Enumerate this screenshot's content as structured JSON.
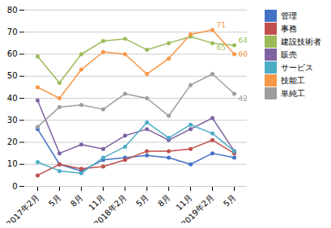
{
  "chart_data": {
    "type": "line",
    "categories": [
      "2017年2月",
      "5月",
      "8月",
      "11月",
      "2018年2月",
      "5月",
      "8月",
      "11月",
      "2019年2月",
      "5月"
    ],
    "series": [
      {
        "name": "管理",
        "color": "#4472C4",
        "marker": "o",
        "values": [
          26,
          10,
          7,
          12,
          13,
          14,
          13,
          10,
          15,
          13
        ]
      },
      {
        "name": "事務",
        "color": "#C0504D",
        "marker": "o",
        "values": [
          5,
          10,
          8,
          9,
          12,
          16,
          16,
          17,
          21,
          15
        ]
      },
      {
        "name": "建設技術者",
        "color": "#9BBB59",
        "marker": "o",
        "values": [
          59,
          47,
          60,
          66,
          67,
          62,
          65,
          68,
          65,
          64
        ]
      },
      {
        "name": "販売",
        "color": "#8064A2",
        "marker": "o",
        "values": [
          39,
          15,
          19,
          17,
          23,
          26,
          21,
          26,
          31,
          16
        ]
      },
      {
        "name": "サービス",
        "color": "#4BACC6",
        "marker": "o",
        "values": [
          11,
          7,
          6,
          13,
          18,
          29,
          22,
          28,
          24,
          16
        ]
      },
      {
        "name": "技能工",
        "color": "#F79646",
        "marker": "o",
        "values": [
          45,
          40,
          53,
          61,
          60,
          51,
          58,
          69,
          71,
          60
        ]
      },
      {
        "name": "単純工",
        "color": "#9E9E9E",
        "marker": "o",
        "values": [
          27,
          36,
          37,
          35,
          42,
          40,
          32,
          46,
          51,
          42
        ]
      }
    ],
    "annotations": [
      {
        "text": "71",
        "series": "技能工",
        "index": 8
      },
      {
        "text": "65",
        "series": "建設技術者",
        "index": 8
      },
      {
        "text": "64",
        "series": "建設技術者",
        "index": 9
      },
      {
        "text": "60",
        "series": "技能工",
        "index": 9
      },
      {
        "text": "42",
        "series": "単純工",
        "index": 9
      }
    ],
    "ylim": [
      0,
      80
    ],
    "yticks": [
      0,
      10,
      20,
      30,
      40,
      50,
      60,
      70,
      80
    ],
    "grid": true,
    "legend": "right"
  }
}
